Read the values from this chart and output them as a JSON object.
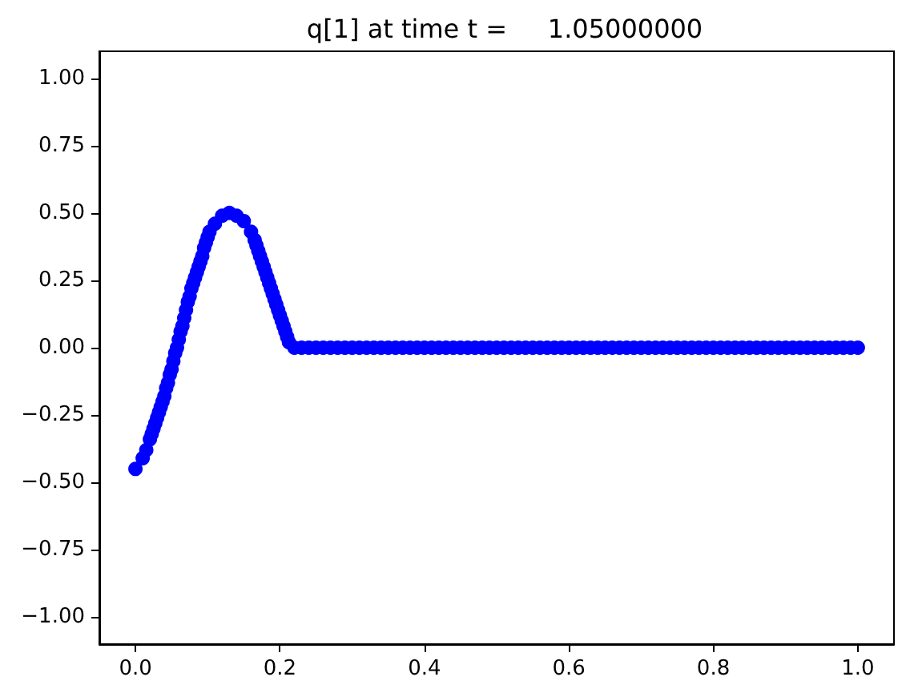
{
  "chart_data": {
    "type": "scatter",
    "title": "q[1] at time t =     1.05000000",
    "x": [
      0,
      0.01,
      0.015,
      0.02,
      0.0225,
      0.025,
      0.0275,
      0.03,
      0.0325,
      0.035,
      0.0375,
      0.04,
      0.0425,
      0.045,
      0.0475,
      0.05,
      0.0525,
      0.055,
      0.0575,
      0.06,
      0.0625,
      0.065,
      0.0675,
      0.07,
      0.0725,
      0.075,
      0.0775,
      0.08,
      0.0825,
      0.085,
      0.0875,
      0.09,
      0.0925,
      0.095,
      0.0975,
      0.1,
      0.1025,
      0.11,
      0.12,
      0.13,
      0.14,
      0.15,
      0.16,
      0.165,
      0.1675,
      0.17,
      0.1725,
      0.175,
      0.1775,
      0.18,
      0.1825,
      0.185,
      0.1875,
      0.19,
      0.1925,
      0.195,
      0.1975,
      0.2,
      0.2025,
      0.205,
      0.2075,
      0.21,
      0.2125,
      0.22,
      0.23,
      0.24,
      0.25,
      0.26,
      0.27,
      0.28,
      0.29,
      0.3,
      0.31,
      0.32,
      0.33,
      0.34,
      0.35,
      0.36,
      0.37,
      0.38,
      0.39,
      0.4,
      0.41,
      0.42,
      0.43,
      0.44,
      0.45,
      0.46,
      0.47,
      0.48,
      0.49,
      0.5,
      0.51,
      0.52,
      0.53,
      0.54,
      0.55,
      0.56,
      0.57,
      0.58,
      0.59,
      0.6,
      0.61,
      0.62,
      0.63,
      0.64,
      0.65,
      0.66,
      0.67,
      0.68,
      0.69,
      0.7,
      0.71,
      0.72,
      0.73,
      0.74,
      0.75,
      0.76,
      0.77,
      0.78,
      0.79,
      0.8,
      0.81,
      0.82,
      0.83,
      0.84,
      0.85,
      0.86,
      0.87,
      0.88,
      0.89,
      0.9,
      0.91,
      0.92,
      0.93,
      0.94,
      0.95,
      0.96,
      0.97,
      0.98,
      0.99,
      1
    ],
    "values": [
      -0.45,
      -0.41,
      -0.38,
      -0.34,
      -0.32,
      -0.3,
      -0.28,
      -0.26,
      -0.24,
      -0.22,
      -0.2,
      -0.18,
      -0.15,
      -0.13,
      -0.1,
      -0.08,
      -0.05,
      -0.02,
      0,
      0.03,
      0.06,
      0.08,
      0.11,
      0.14,
      0.17,
      0.19,
      0.22,
      0.24,
      0.26,
      0.28,
      0.3,
      0.32,
      0.34,
      0.37,
      0.39,
      0.41,
      0.43,
      0.46,
      0.49,
      0.5,
      0.49,
      0.47,
      0.43,
      0.4,
      0.38,
      0.36,
      0.34,
      0.32,
      0.3,
      0.28,
      0.26,
      0.24,
      0.22,
      0.2,
      0.18,
      0.16,
      0.14,
      0.12,
      0.1,
      0.08,
      0.06,
      0.04,
      0.02,
      0,
      0,
      0,
      0,
      0,
      0,
      0,
      0,
      0,
      0,
      0,
      0,
      0,
      0,
      0,
      0,
      0,
      0,
      0,
      0,
      0,
      0,
      0,
      0,
      0,
      0,
      0,
      0,
      0,
      0,
      0,
      0,
      0,
      0,
      0,
      0,
      0,
      0,
      0,
      0,
      0,
      0,
      0,
      0,
      0,
      0,
      0,
      0,
      0,
      0,
      0,
      0,
      0,
      0,
      0,
      0,
      0,
      0,
      0,
      0,
      0,
      0,
      0,
      0,
      0,
      0,
      0,
      0,
      0,
      0,
      0,
      0,
      0,
      0,
      0,
      0,
      0,
      0,
      0
    ],
    "color": "#0000ff",
    "marker": "circle",
    "grid": false,
    "xlim": [
      -0.05,
      1.05
    ],
    "xticks": [
      {
        "value": 0,
        "label": "0.0"
      },
      {
        "value": 0.2,
        "label": "0.2"
      },
      {
        "value": 0.4,
        "label": "0.4"
      },
      {
        "value": 0.6,
        "label": "0.6"
      },
      {
        "value": 0.8,
        "label": "0.8"
      },
      {
        "value": 1,
        "label": "1.0"
      }
    ],
    "ylim": [
      -1.1,
      1.1
    ],
    "yticks": [
      {
        "value": -1,
        "label": "−1.00"
      },
      {
        "value": -0.75,
        "label": "−0.75"
      },
      {
        "value": -0.5,
        "label": "−0.50"
      },
      {
        "value": -0.25,
        "label": "−0.25"
      },
      {
        "value": 0,
        "label": "0.00"
      },
      {
        "value": 0.25,
        "label": "0.25"
      },
      {
        "value": 0.5,
        "label": "0.50"
      },
      {
        "value": 0.75,
        "label": "0.75"
      },
      {
        "value": 1,
        "label": "1.00"
      }
    ]
  }
}
